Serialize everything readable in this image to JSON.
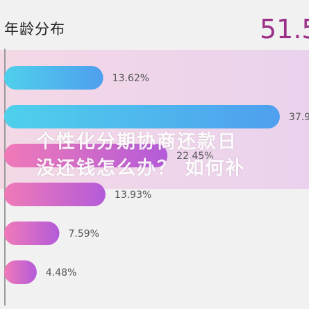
{
  "header": {
    "title": "年龄分布",
    "highlight_value": "51.5"
  },
  "overlay": {
    "line1": "个性化分期协商还款日",
    "line2": "没还钱怎么办？ 如何补"
  },
  "colors": {
    "blue_start": "#4fd0ec",
    "blue_end": "#4f9fee",
    "pink_start": "#f07ab8",
    "pink_end": "#b35bd9",
    "accent": "#9b2f88"
  },
  "chart_data": {
    "type": "bar",
    "orientation": "horizontal",
    "values": [
      13.62,
      37.9,
      22.45,
      13.93,
      7.59,
      4.48
    ],
    "labels": [
      "13.62%",
      "37.9",
      "22.45%",
      "13.93%",
      "7.59%",
      "4.48%"
    ],
    "value_unit": "%",
    "title": "年龄分布",
    "xlim": [
      0,
      40
    ],
    "grid": false
  }
}
